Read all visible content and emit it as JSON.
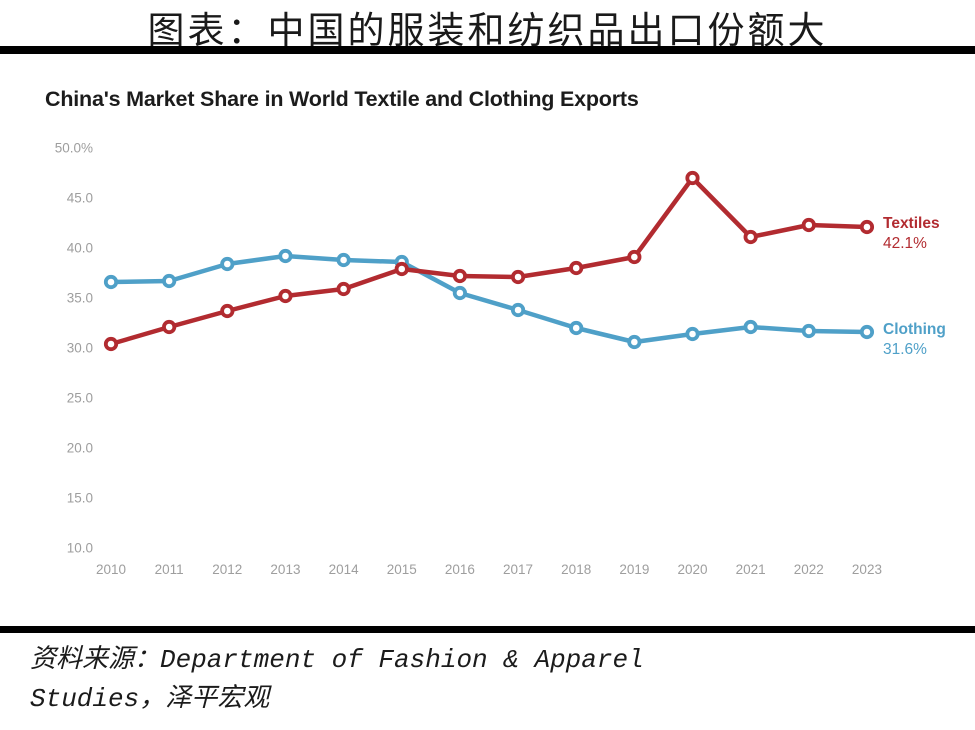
{
  "header": {
    "title": "图表：中国的服装和纺织品出口份额大"
  },
  "chart_data": {
    "type": "line",
    "title": "China's Market Share in World Textile and Clothing Exports",
    "x": [
      2010,
      2011,
      2012,
      2013,
      2014,
      2015,
      2016,
      2017,
      2018,
      2019,
      2020,
      2021,
      2022,
      2023
    ],
    "series": [
      {
        "name": "Textiles",
        "end_value_label": "42.1%",
        "color": "#b22b30",
        "values": [
          30.4,
          32.1,
          33.7,
          35.2,
          35.9,
          37.9,
          37.2,
          37.1,
          38.0,
          39.1,
          47.0,
          41.1,
          42.3,
          42.1
        ]
      },
      {
        "name": "Clothing",
        "end_value_label": "31.6%",
        "color": "#4fa0c8",
        "values": [
          36.6,
          36.7,
          38.4,
          39.2,
          38.8,
          38.6,
          35.5,
          33.8,
          32.0,
          30.6,
          31.4,
          32.1,
          31.7,
          31.6
        ]
      }
    ],
    "ylim": [
      10,
      50
    ],
    "yticks": [
      {
        "value": 50,
        "label": "50.0%"
      },
      {
        "value": 45,
        "label": "45.0"
      },
      {
        "value": 40,
        "label": "40.0"
      },
      {
        "value": 35,
        "label": "35.0"
      },
      {
        "value": 30,
        "label": "30.0"
      },
      {
        "value": 25,
        "label": "25.0"
      },
      {
        "value": 20,
        "label": "20.0"
      },
      {
        "value": 15,
        "label": "15.0"
      },
      {
        "value": 10,
        "label": "10.0"
      }
    ],
    "grid": false,
    "legend_position": "right-end-labels",
    "axis_label_color": "#9e9e9e"
  },
  "footer": {
    "source_line1": "资料来源：Department of Fashion & Apparel",
    "source_line2": "Studies，泽平宏观"
  }
}
